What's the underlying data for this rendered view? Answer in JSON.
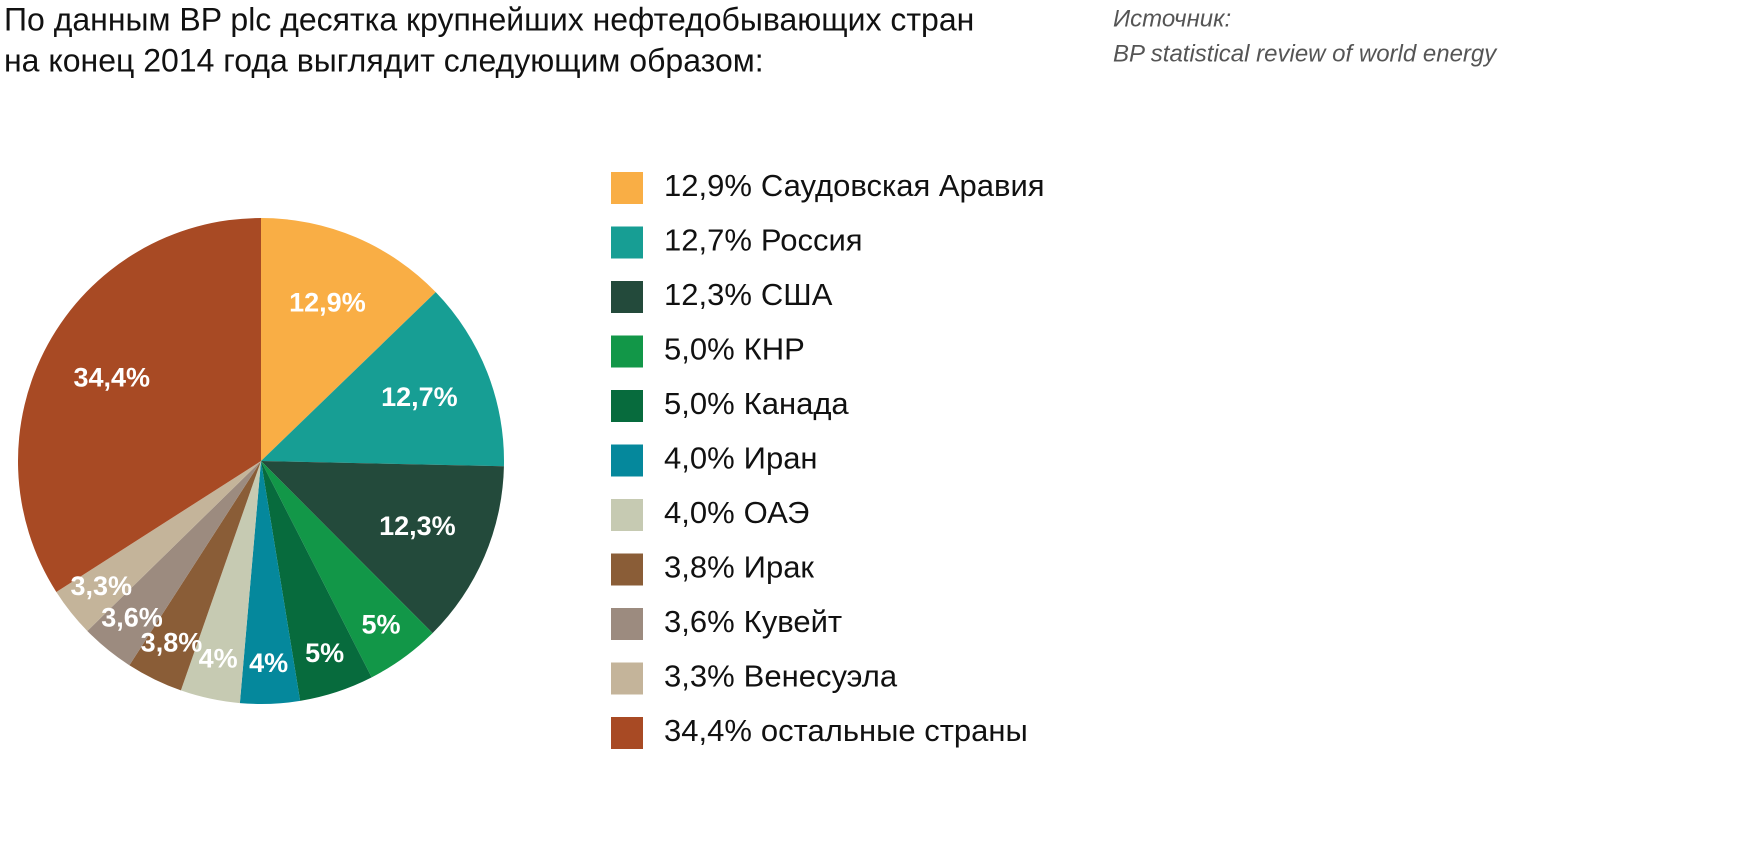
{
  "chart_data": {
    "type": "pie",
    "title": [
      "По данным BP plc десятка крупнейших нефтедобывающих стран",
      "на конец 2014 года выглядит следующим образом:"
    ],
    "source_label": "Источник:",
    "source": "BP statistical review of world energy",
    "categories": [
      "Саудовская Аравия",
      "Россия",
      "США",
      "КНР",
      "Канада",
      "Иран",
      "ОАЭ",
      "Ирак",
      "Кувейт",
      "Венесуэла",
      "остальные страны"
    ],
    "values": [
      12.9,
      12.7,
      12.3,
      5.0,
      5.0,
      4.0,
      4.0,
      3.8,
      3.6,
      3.3,
      34.4
    ],
    "value_labels": [
      "12,9%",
      "12,7%",
      "12,3%",
      "5%",
      "5%",
      "4%",
      "4%",
      "3,8%",
      "3,6%",
      "3,3%",
      "34,4%"
    ],
    "legend_value_labels": [
      "12,9%",
      "12,7%",
      "12,3%",
      "5,0%",
      "5,0%",
      "4,0%",
      "4,0%",
      "3,8%",
      "3,6%",
      "3,3%",
      "34,4%"
    ],
    "colors": [
      "#f9ae45",
      "#179e94",
      "#234a3b",
      "#129748",
      "#076b3d",
      "#05889c",
      "#c6cab2",
      "#8a5d37",
      "#9c8b7f",
      "#c4b49a",
      "#a84a24"
    ]
  }
}
